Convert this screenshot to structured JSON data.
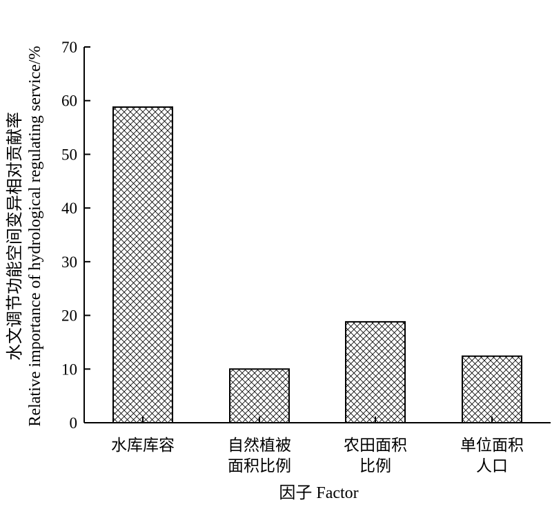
{
  "chart_data": {
    "type": "bar",
    "categories": [
      [
        "水库库容"
      ],
      [
        "自然植被",
        "面积比例"
      ],
      [
        "农田面积",
        "比例"
      ],
      [
        "单位面积",
        "人口"
      ]
    ],
    "values": [
      58.8,
      10.0,
      18.8,
      12.4
    ],
    "xlabel": "因子 Factor",
    "ylabel_cn": "水文调节功能空间变异相对贡献率",
    "ylabel_en": "Relative importance of hydrological regulating service/%",
    "ylim": [
      0,
      70
    ],
    "yticks": [
      0,
      10,
      20,
      30,
      40,
      50,
      60,
      70
    ],
    "bar_fill": "crosshatch",
    "bar_color": "#000000",
    "grid": false
  }
}
